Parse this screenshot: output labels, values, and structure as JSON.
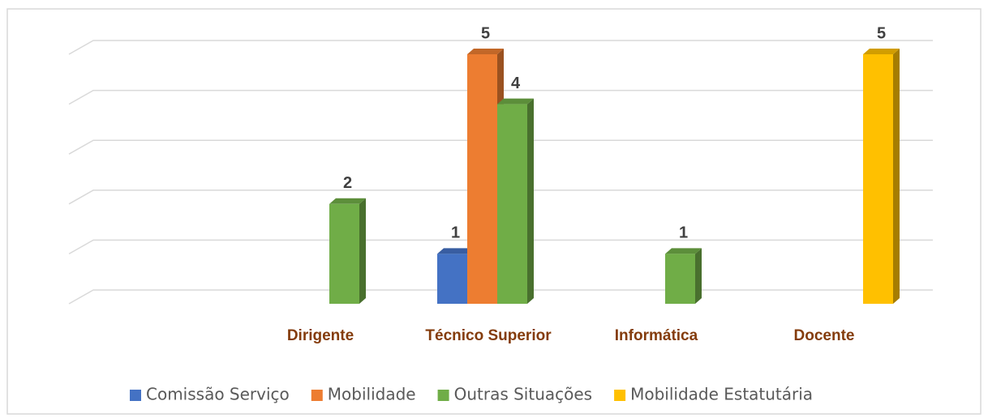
{
  "chart_data": {
    "type": "bar3d",
    "categories": [
      null,
      "Dirigente",
      "Técnico Superior",
      "Informática",
      "Docente"
    ],
    "series": [
      {
        "name": "Comissão Serviço",
        "color": "#4472c4",
        "values": [
          null,
          null,
          1,
          null,
          null
        ]
      },
      {
        "name": "Mobilidade",
        "color": "#ed7d31",
        "values": [
          null,
          null,
          5,
          null,
          null
        ]
      },
      {
        "name": "Outras Situações",
        "color": "#70ad47",
        "values": [
          null,
          2,
          4,
          1,
          null
        ]
      },
      {
        "name": "Mobilidade Estatutária",
        "color": "#ffc000",
        "values": [
          null,
          null,
          null,
          null,
          5
        ]
      }
    ],
    "ylim": [
      0,
      5
    ],
    "yticks": [
      0,
      1,
      2,
      3,
      4,
      5
    ],
    "grid": true,
    "legend": "bottom"
  }
}
